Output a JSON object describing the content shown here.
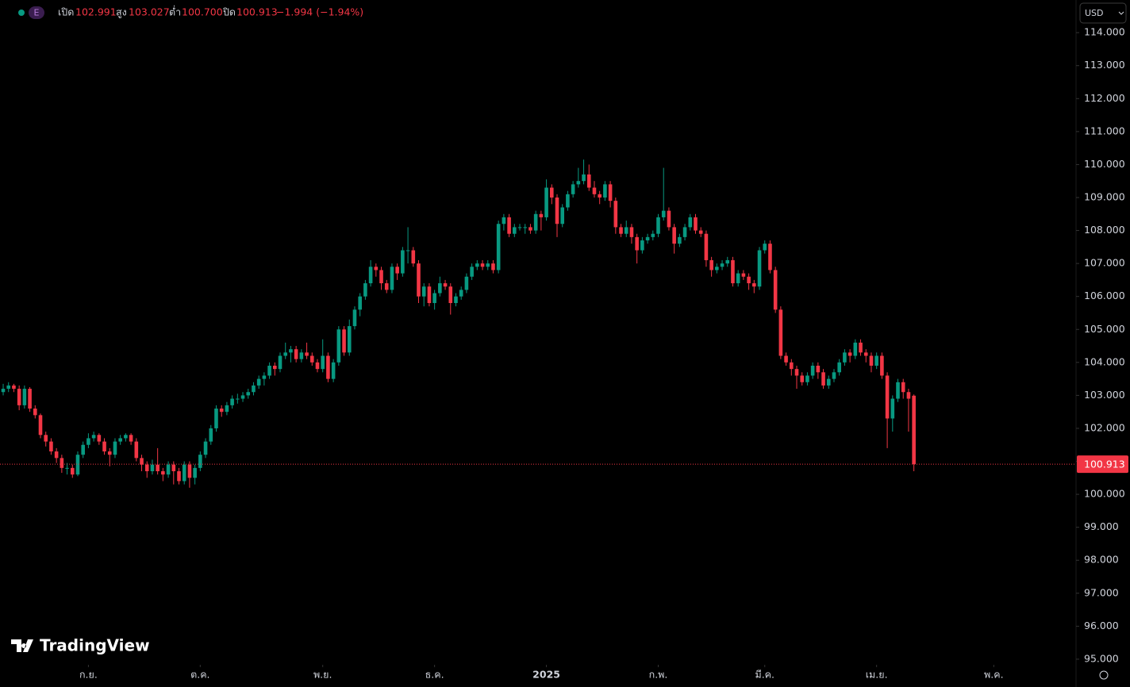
{
  "chart_data": {
    "type": "candlestick",
    "symbol_badge": "E",
    "currency": "USD",
    "watermark": "TradingView",
    "legend": {
      "open_label": "เปิด",
      "open": "102.991",
      "high_label": "สูง",
      "high": "103.027",
      "low_label": "ต่ำ",
      "low": "100.700",
      "close_label": "ปิด",
      "close": "100.913",
      "change": "−1.994 (−1.94%)"
    },
    "up_color": "#089981",
    "down_color": "#f23645",
    "last_price": {
      "value": 100.913,
      "label": "100.913"
    },
    "ylim": [
      94.83,
      114.99
    ],
    "xlim": [
      -0.6,
      201.3
    ],
    "grid": false,
    "yticks": [
      {
        "value": 95,
        "label": "95.000"
      },
      {
        "value": 96,
        "label": "96.000"
      },
      {
        "value": 97,
        "label": "97.000"
      },
      {
        "value": 98,
        "label": "98.000"
      },
      {
        "value": 99,
        "label": "99.000"
      },
      {
        "value": 100,
        "label": "100.000"
      },
      {
        "value": 101,
        "label": "101.000"
      },
      {
        "value": 102,
        "label": "102.000"
      },
      {
        "value": 103,
        "label": "103.000"
      },
      {
        "value": 104,
        "label": "104.000"
      },
      {
        "value": 105,
        "label": "105.000"
      },
      {
        "value": 106,
        "label": "106.000"
      },
      {
        "value": 107,
        "label": "107.000"
      },
      {
        "value": 108,
        "label": "108.000"
      },
      {
        "value": 109,
        "label": "109.000"
      },
      {
        "value": 110,
        "label": "110.000"
      },
      {
        "value": 111,
        "label": "111.000"
      },
      {
        "value": 112,
        "label": "112.000"
      },
      {
        "value": 113,
        "label": "113.000"
      },
      {
        "value": 114,
        "label": "114.000"
      }
    ],
    "xticks": [
      {
        "value": 16,
        "label": "ก.ย."
      },
      {
        "value": 37,
        "label": "ต.ค."
      },
      {
        "value": 60,
        "label": "พ.ย."
      },
      {
        "value": 81,
        "label": "ธ.ค."
      },
      {
        "value": 102,
        "label": "2025"
      },
      {
        "value": 123,
        "label": "ก.พ."
      },
      {
        "value": 143,
        "label": "มี.ค."
      },
      {
        "value": 164,
        "label": "เม.ย."
      },
      {
        "value": 186,
        "label": "พ.ค."
      }
    ],
    "ohlc": [
      [
        103.1,
        103.35,
        103.0,
        103.2
      ],
      [
        103.2,
        103.4,
        103.1,
        103.3
      ],
      [
        103.3,
        103.35,
        103.1,
        103.2
      ],
      [
        103.2,
        103.3,
        102.55,
        102.7
      ],
      [
        102.7,
        103.3,
        102.6,
        103.2
      ],
      [
        103.2,
        103.25,
        102.5,
        102.6
      ],
      [
        102.6,
        102.7,
        102.3,
        102.4
      ],
      [
        102.4,
        102.45,
        101.7,
        101.8
      ],
      [
        101.8,
        101.9,
        101.45,
        101.6
      ],
      [
        101.6,
        101.7,
        101.2,
        101.3
      ],
      [
        101.3,
        101.4,
        100.95,
        101.1
      ],
      [
        101.1,
        101.2,
        100.65,
        100.8
      ],
      [
        100.8,
        100.95,
        100.6,
        100.8
      ],
      [
        100.8,
        100.9,
        100.5,
        100.6
      ],
      [
        100.6,
        101.3,
        100.55,
        101.2
      ],
      [
        101.2,
        101.6,
        101.1,
        101.5
      ],
      [
        101.5,
        101.85,
        101.4,
        101.7
      ],
      [
        101.7,
        101.9,
        101.6,
        101.8
      ],
      [
        101.8,
        101.85,
        101.5,
        101.6
      ],
      [
        101.6,
        101.7,
        101.2,
        101.3
      ],
      [
        101.3,
        101.4,
        100.85,
        101.2
      ],
      [
        101.2,
        101.7,
        101.1,
        101.6
      ],
      [
        101.6,
        101.8,
        101.5,
        101.7
      ],
      [
        101.7,
        101.85,
        101.6,
        101.8
      ],
      [
        101.8,
        101.85,
        101.5,
        101.6
      ],
      [
        101.6,
        101.7,
        101.0,
        101.1
      ],
      [
        101.1,
        101.2,
        100.7,
        100.9
      ],
      [
        100.9,
        101.0,
        100.5,
        100.7
      ],
      [
        100.7,
        101.05,
        100.6,
        100.9
      ],
      [
        100.9,
        101.4,
        100.6,
        100.7
      ],
      [
        100.7,
        100.8,
        100.4,
        100.6
      ],
      [
        100.6,
        101.0,
        100.5,
        100.9
      ],
      [
        100.9,
        101.0,
        100.3,
        100.7
      ],
      [
        100.7,
        100.8,
        100.3,
        100.4
      ],
      [
        100.4,
        101.0,
        100.3,
        100.9
      ],
      [
        100.9,
        101.0,
        100.2,
        100.5
      ],
      [
        100.5,
        100.9,
        100.3,
        100.8
      ],
      [
        100.8,
        101.3,
        100.7,
        101.2
      ],
      [
        101.2,
        101.7,
        101.1,
        101.6
      ],
      [
        101.6,
        102.1,
        101.5,
        102.0
      ],
      [
        102.0,
        102.7,
        101.9,
        102.6
      ],
      [
        102.6,
        102.7,
        102.35,
        102.5
      ],
      [
        102.5,
        102.8,
        102.4,
        102.7
      ],
      [
        102.7,
        103.0,
        102.6,
        102.9
      ],
      [
        102.9,
        103.05,
        102.75,
        102.9
      ],
      [
        102.9,
        103.1,
        102.8,
        103.0
      ],
      [
        103.0,
        103.2,
        102.9,
        103.1
      ],
      [
        103.1,
        103.4,
        103.0,
        103.3
      ],
      [
        103.3,
        103.6,
        103.2,
        103.5
      ],
      [
        103.5,
        103.7,
        103.3,
        103.6
      ],
      [
        103.6,
        104.0,
        103.5,
        103.9
      ],
      [
        103.9,
        104.0,
        103.6,
        103.8
      ],
      [
        103.8,
        104.3,
        103.7,
        104.2
      ],
      [
        104.2,
        104.6,
        104.1,
        104.3
      ],
      [
        104.3,
        104.5,
        104.0,
        104.4
      ],
      [
        104.4,
        104.5,
        104.0,
        104.1
      ],
      [
        104.1,
        104.4,
        104.0,
        104.3
      ],
      [
        104.3,
        104.6,
        104.1,
        104.2
      ],
      [
        104.2,
        104.3,
        103.9,
        104.0
      ],
      [
        104.0,
        104.1,
        103.7,
        103.8
      ],
      [
        103.8,
        104.7,
        103.7,
        104.2
      ],
      [
        104.2,
        104.3,
        103.4,
        103.5
      ],
      [
        103.5,
        104.1,
        103.4,
        104.0
      ],
      [
        104.0,
        105.1,
        103.9,
        105.0
      ],
      [
        105.0,
        105.1,
        104.2,
        104.3
      ],
      [
        104.3,
        105.3,
        104.2,
        105.1
      ],
      [
        105.1,
        105.7,
        105.0,
        105.6
      ],
      [
        105.6,
        106.1,
        105.4,
        106.0
      ],
      [
        106.0,
        106.5,
        105.9,
        106.4
      ],
      [
        106.4,
        107.1,
        106.3,
        106.9
      ],
      [
        106.9,
        107.0,
        106.6,
        106.8
      ],
      [
        106.8,
        106.9,
        106.2,
        106.4
      ],
      [
        106.4,
        106.5,
        106.1,
        106.2
      ],
      [
        106.2,
        107.0,
        106.1,
        106.9
      ],
      [
        106.9,
        107.0,
        106.5,
        106.7
      ],
      [
        106.7,
        107.5,
        106.6,
        107.4
      ],
      [
        107.4,
        108.1,
        107.0,
        107.4
      ],
      [
        107.4,
        107.5,
        106.9,
        107.0
      ],
      [
        107.0,
        107.1,
        105.8,
        106.0
      ],
      [
        106.0,
        106.4,
        105.7,
        106.3
      ],
      [
        106.3,
        106.4,
        105.7,
        105.8
      ],
      [
        105.8,
        106.2,
        105.6,
        106.1
      ],
      [
        106.1,
        106.6,
        106.0,
        106.4
      ],
      [
        106.4,
        106.5,
        106.2,
        106.3
      ],
      [
        106.3,
        106.4,
        105.45,
        105.8
      ],
      [
        105.8,
        106.1,
        105.7,
        106.0
      ],
      [
        106.0,
        106.3,
        105.9,
        106.2
      ],
      [
        106.2,
        106.7,
        106.1,
        106.6
      ],
      [
        106.6,
        107.0,
        106.5,
        106.9
      ],
      [
        106.9,
        107.1,
        106.8,
        107.0
      ],
      [
        107.0,
        107.1,
        106.8,
        106.9
      ],
      [
        106.9,
        107.1,
        106.8,
        107.0
      ],
      [
        107.0,
        107.1,
        106.7,
        106.8
      ],
      [
        106.8,
        108.3,
        106.7,
        108.2
      ],
      [
        108.2,
        108.5,
        108.0,
        108.4
      ],
      [
        108.4,
        108.5,
        107.8,
        107.9
      ],
      [
        107.9,
        108.2,
        107.8,
        108.1
      ],
      [
        108.1,
        108.2,
        108.0,
        108.1
      ],
      [
        108.1,
        108.2,
        107.9,
        108.1
      ],
      [
        108.1,
        108.2,
        107.9,
        108.0
      ],
      [
        108.0,
        108.6,
        107.9,
        108.5
      ],
      [
        108.5,
        108.6,
        108.0,
        108.4
      ],
      [
        108.4,
        109.55,
        108.3,
        109.3
      ],
      [
        109.3,
        109.4,
        108.8,
        109.0
      ],
      [
        109.0,
        109.1,
        107.8,
        108.2
      ],
      [
        108.2,
        108.8,
        108.1,
        108.7
      ],
      [
        108.7,
        109.2,
        108.6,
        109.1
      ],
      [
        109.1,
        109.5,
        109.0,
        109.4
      ],
      [
        109.4,
        109.9,
        109.3,
        109.5
      ],
      [
        109.5,
        110.15,
        109.4,
        109.7
      ],
      [
        109.7,
        110.0,
        109.2,
        109.3
      ],
      [
        109.3,
        109.5,
        109.0,
        109.1
      ],
      [
        109.1,
        109.2,
        108.8,
        109.0
      ],
      [
        109.0,
        109.5,
        108.9,
        109.4
      ],
      [
        109.4,
        109.5,
        108.7,
        108.9
      ],
      [
        108.9,
        109.0,
        107.9,
        108.1
      ],
      [
        108.1,
        108.2,
        107.8,
        107.9
      ],
      [
        107.9,
        108.3,
        107.8,
        108.1
      ],
      [
        108.1,
        108.2,
        107.6,
        107.8
      ],
      [
        107.8,
        107.9,
        107.0,
        107.4
      ],
      [
        107.4,
        107.8,
        107.3,
        107.7
      ],
      [
        107.7,
        107.9,
        107.6,
        107.8
      ],
      [
        107.8,
        108.0,
        107.7,
        107.9
      ],
      [
        107.9,
        108.5,
        107.8,
        108.4
      ],
      [
        108.4,
        109.9,
        108.3,
        108.6
      ],
      [
        108.6,
        108.7,
        108.0,
        108.1
      ],
      [
        108.1,
        108.2,
        107.3,
        107.6
      ],
      [
        107.6,
        107.9,
        107.5,
        107.8
      ],
      [
        107.8,
        108.2,
        107.7,
        108.1
      ],
      [
        108.1,
        108.5,
        108.0,
        108.4
      ],
      [
        108.4,
        108.5,
        107.9,
        108.0
      ],
      [
        108.0,
        108.1,
        107.8,
        107.9
      ],
      [
        107.9,
        108.0,
        106.9,
        107.1
      ],
      [
        107.1,
        107.2,
        106.6,
        106.8
      ],
      [
        106.8,
        107.0,
        106.7,
        106.9
      ],
      [
        106.9,
        107.1,
        106.8,
        107.0
      ],
      [
        107.0,
        107.2,
        106.9,
        107.1
      ],
      [
        107.1,
        107.2,
        106.3,
        106.4
      ],
      [
        106.4,
        106.8,
        106.3,
        106.7
      ],
      [
        106.7,
        106.8,
        106.5,
        106.6
      ],
      [
        106.6,
        106.7,
        106.2,
        106.4
      ],
      [
        106.4,
        106.5,
        106.1,
        106.3
      ],
      [
        106.3,
        107.5,
        106.2,
        107.4
      ],
      [
        107.4,
        107.7,
        107.3,
        107.6
      ],
      [
        107.6,
        107.7,
        106.7,
        106.8
      ],
      [
        106.8,
        106.9,
        105.5,
        105.6
      ],
      [
        105.6,
        105.7,
        104.1,
        104.2
      ],
      [
        104.2,
        104.3,
        103.9,
        104.0
      ],
      [
        104.0,
        104.1,
        103.6,
        103.8
      ],
      [
        103.8,
        103.9,
        103.2,
        103.6
      ],
      [
        103.6,
        103.7,
        103.3,
        103.4
      ],
      [
        103.4,
        103.7,
        103.3,
        103.6
      ],
      [
        103.6,
        104.0,
        103.5,
        103.9
      ],
      [
        103.9,
        104.0,
        103.5,
        103.7
      ],
      [
        103.7,
        103.8,
        103.2,
        103.3
      ],
      [
        103.3,
        103.6,
        103.2,
        103.5
      ],
      [
        103.5,
        103.8,
        103.4,
        103.7
      ],
      [
        103.7,
        104.1,
        103.6,
        104.0
      ],
      [
        104.0,
        104.4,
        103.9,
        104.3
      ],
      [
        104.3,
        104.4,
        104.0,
        104.2
      ],
      [
        104.2,
        104.7,
        104.1,
        104.6
      ],
      [
        104.6,
        104.7,
        104.2,
        104.3
      ],
      [
        104.3,
        104.4,
        104.0,
        104.2
      ],
      [
        104.2,
        104.3,
        103.7,
        103.9
      ],
      [
        103.9,
        104.3,
        103.8,
        104.2
      ],
      [
        104.2,
        104.3,
        103.5,
        103.6
      ],
      [
        103.6,
        103.7,
        101.4,
        102.3
      ],
      [
        102.3,
        103.0,
        101.9,
        102.9
      ],
      [
        102.9,
        103.5,
        102.8,
        103.4
      ],
      [
        103.4,
        103.5,
        102.9,
        103.1
      ],
      [
        103.1,
        103.2,
        101.9,
        102.9
      ],
      [
        102.991,
        103.027,
        100.7,
        100.913
      ]
    ]
  }
}
